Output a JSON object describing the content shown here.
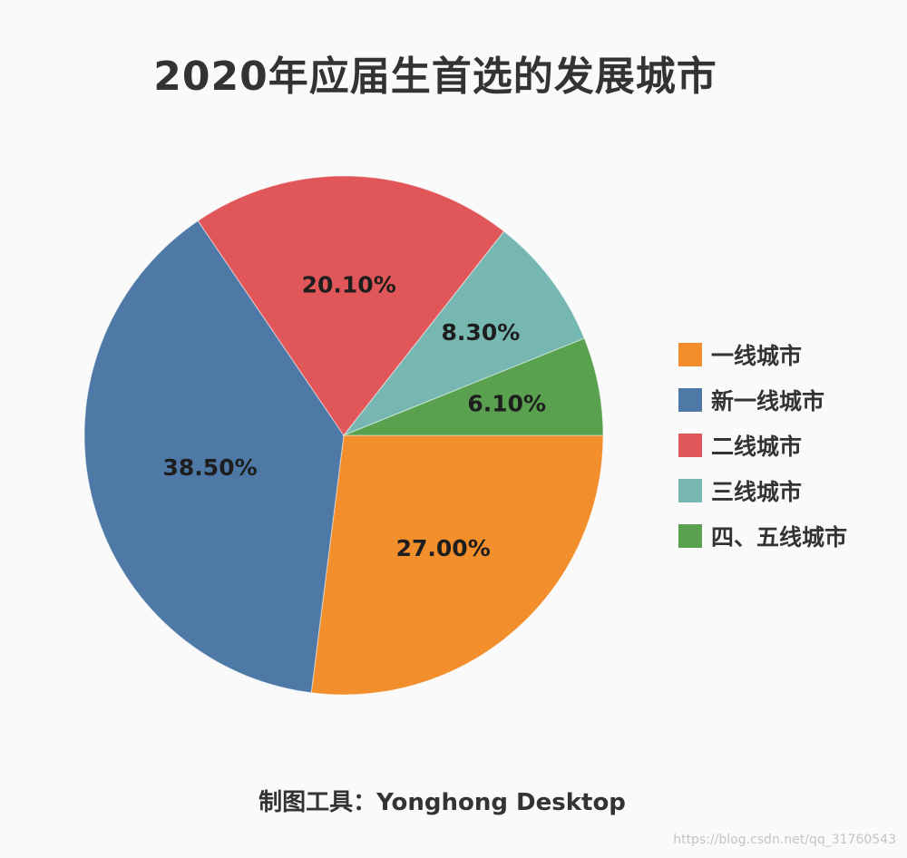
{
  "chart_data": {
    "type": "pie",
    "title": "2020年应届生首选的发展城市",
    "slices": [
      {
        "name": "一线城市",
        "value": 27.0,
        "label": "27.00%",
        "color": "#f28e2b"
      },
      {
        "name": "新一线城市",
        "value": 38.5,
        "label": "38.50%",
        "color": "#4e79a7"
      },
      {
        "name": "二线城市",
        "value": 20.1,
        "label": "20.10%",
        "color": "#e15759"
      },
      {
        "name": "三线城市",
        "value": 8.3,
        "label": "8.30%",
        "color": "#76b7b2"
      },
      {
        "name": "四、五线城市",
        "value": 6.1,
        "label": "6.10%",
        "color": "#59a14f"
      }
    ],
    "legend_position": "right"
  },
  "footer": "制图工具：Yonghong Desktop",
  "watermark": "https://blog.csdn.net/qq_31760543"
}
